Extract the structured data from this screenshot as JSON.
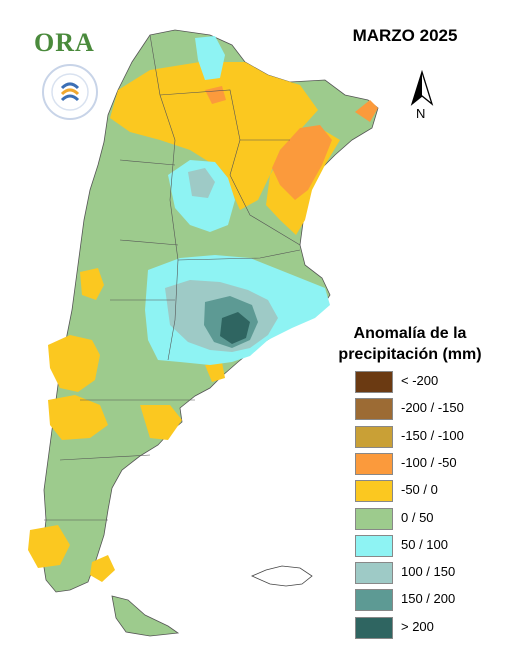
{
  "map": {
    "title": "MARZO 2025",
    "north_label": "N",
    "logo_text": "ORA",
    "legend": {
      "title_line1": "Anomalía de la",
      "title_line2": "precipitación (mm)",
      "items": [
        {
          "label": "< -200",
          "color": "#6b3a12"
        },
        {
          "label": "-200 / -150",
          "color": "#9c6b34"
        },
        {
          "label": "-150 / -100",
          "color": "#c9a036"
        },
        {
          "label": "-100 / -50",
          "color": "#fb9a3c"
        },
        {
          "label": "-50 / 0",
          "color": "#fbc820"
        },
        {
          "label": "0 / 50",
          "color": "#9dcb8d"
        },
        {
          "label": "50 / 100",
          "color": "#8ef3f3"
        },
        {
          "label": "100 / 150",
          "color": "#9ecac6"
        },
        {
          "label": "150 / 200",
          "color": "#5d9a94"
        },
        {
          "label": "> 200",
          "color": "#2f6561"
        }
      ]
    }
  }
}
